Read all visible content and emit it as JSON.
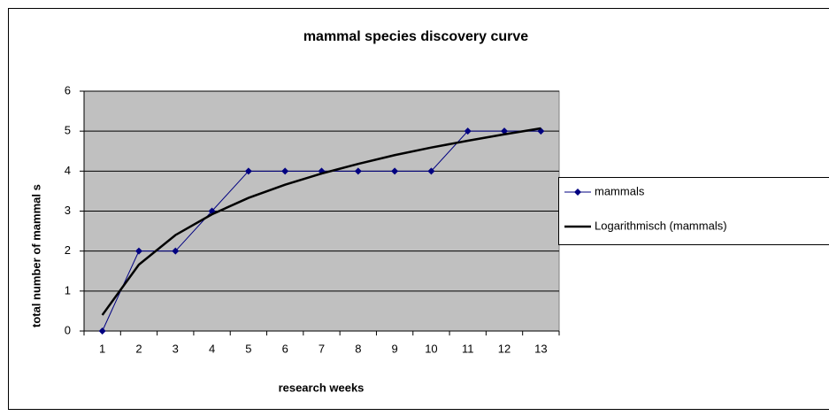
{
  "chart_data": {
    "type": "line",
    "title": "mammal species discovery curve",
    "x_label": "research weeks",
    "y_label": "total number of mammal s",
    "categories": [
      "1",
      "2",
      "3",
      "4",
      "5",
      "6",
      "7",
      "8",
      "9",
      "10",
      "11",
      "12",
      "13"
    ],
    "series": [
      {
        "name": "mammals",
        "color": "#000080",
        "marker": "diamond",
        "values": [
          0,
          2,
          2,
          3,
          4,
          4,
          4,
          4,
          4,
          4,
          5,
          5,
          5
        ]
      },
      {
        "name": "Logarithmisch (mammals)",
        "color": "#000000",
        "marker": "none",
        "values": [
          0.4,
          1.66,
          2.4,
          2.92,
          3.33,
          3.66,
          3.94,
          4.18,
          4.4,
          4.59,
          4.76,
          4.92,
          5.07
        ]
      }
    ],
    "ylim": [
      0,
      6
    ],
    "yticks": [
      0,
      1,
      2,
      3,
      4,
      5,
      6
    ],
    "grid": true,
    "legend": "right"
  }
}
